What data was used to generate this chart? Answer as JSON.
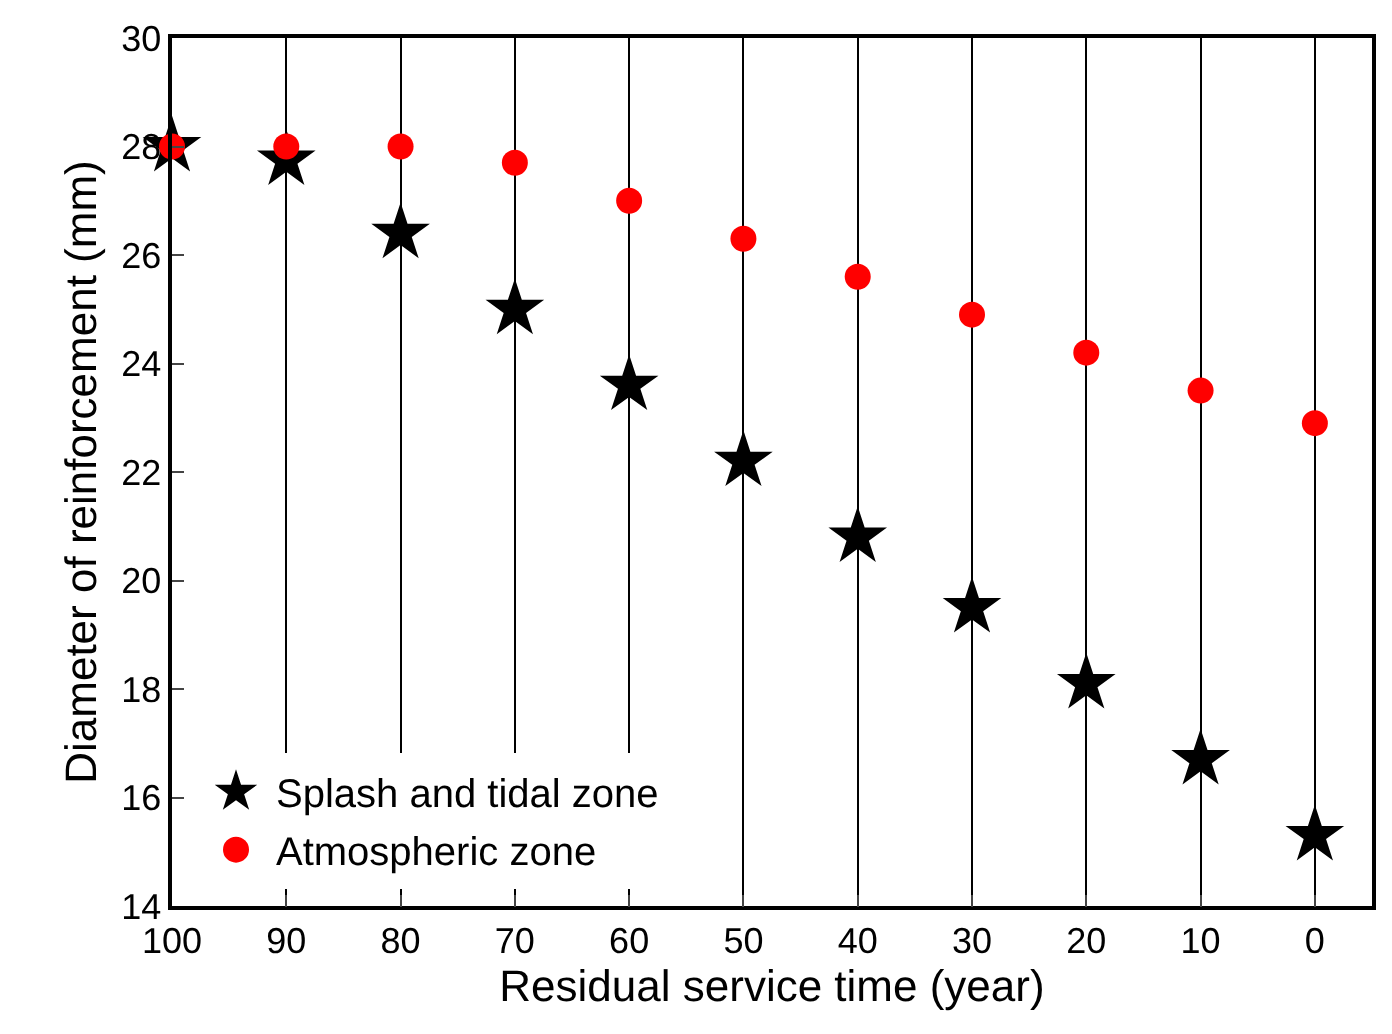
{
  "chart_data": {
    "type": "scatter",
    "xlabel": "Residual service time (year)",
    "ylabel": "Diameter of reinforcement (mm)",
    "x": [
      100,
      90,
      80,
      70,
      60,
      50,
      40,
      30,
      20,
      10,
      0
    ],
    "series": [
      {
        "name": "Splash and tidal zone",
        "color": "#000000",
        "marker": "star",
        "values": [
          28.0,
          27.75,
          26.4,
          25.0,
          23.6,
          22.2,
          20.8,
          19.5,
          18.1,
          16.7,
          15.3
        ]
      },
      {
        "name": "Atmospheric zone",
        "color": "#ff0000",
        "marker": "circle",
        "values": [
          28.0,
          28.0,
          28.0,
          27.7,
          27.0,
          26.3,
          25.6,
          24.9,
          24.2,
          23.5,
          22.9
        ]
      }
    ],
    "xlim": [
      100,
      -5
    ],
    "xticks": [
      100,
      90,
      80,
      70,
      60,
      50,
      40,
      30,
      20,
      10,
      0
    ],
    "ylim": [
      14,
      30
    ],
    "yticks": [
      14,
      16,
      18,
      20,
      22,
      24,
      26,
      28,
      30
    ],
    "grid": "x",
    "legend": "bottom left"
  }
}
